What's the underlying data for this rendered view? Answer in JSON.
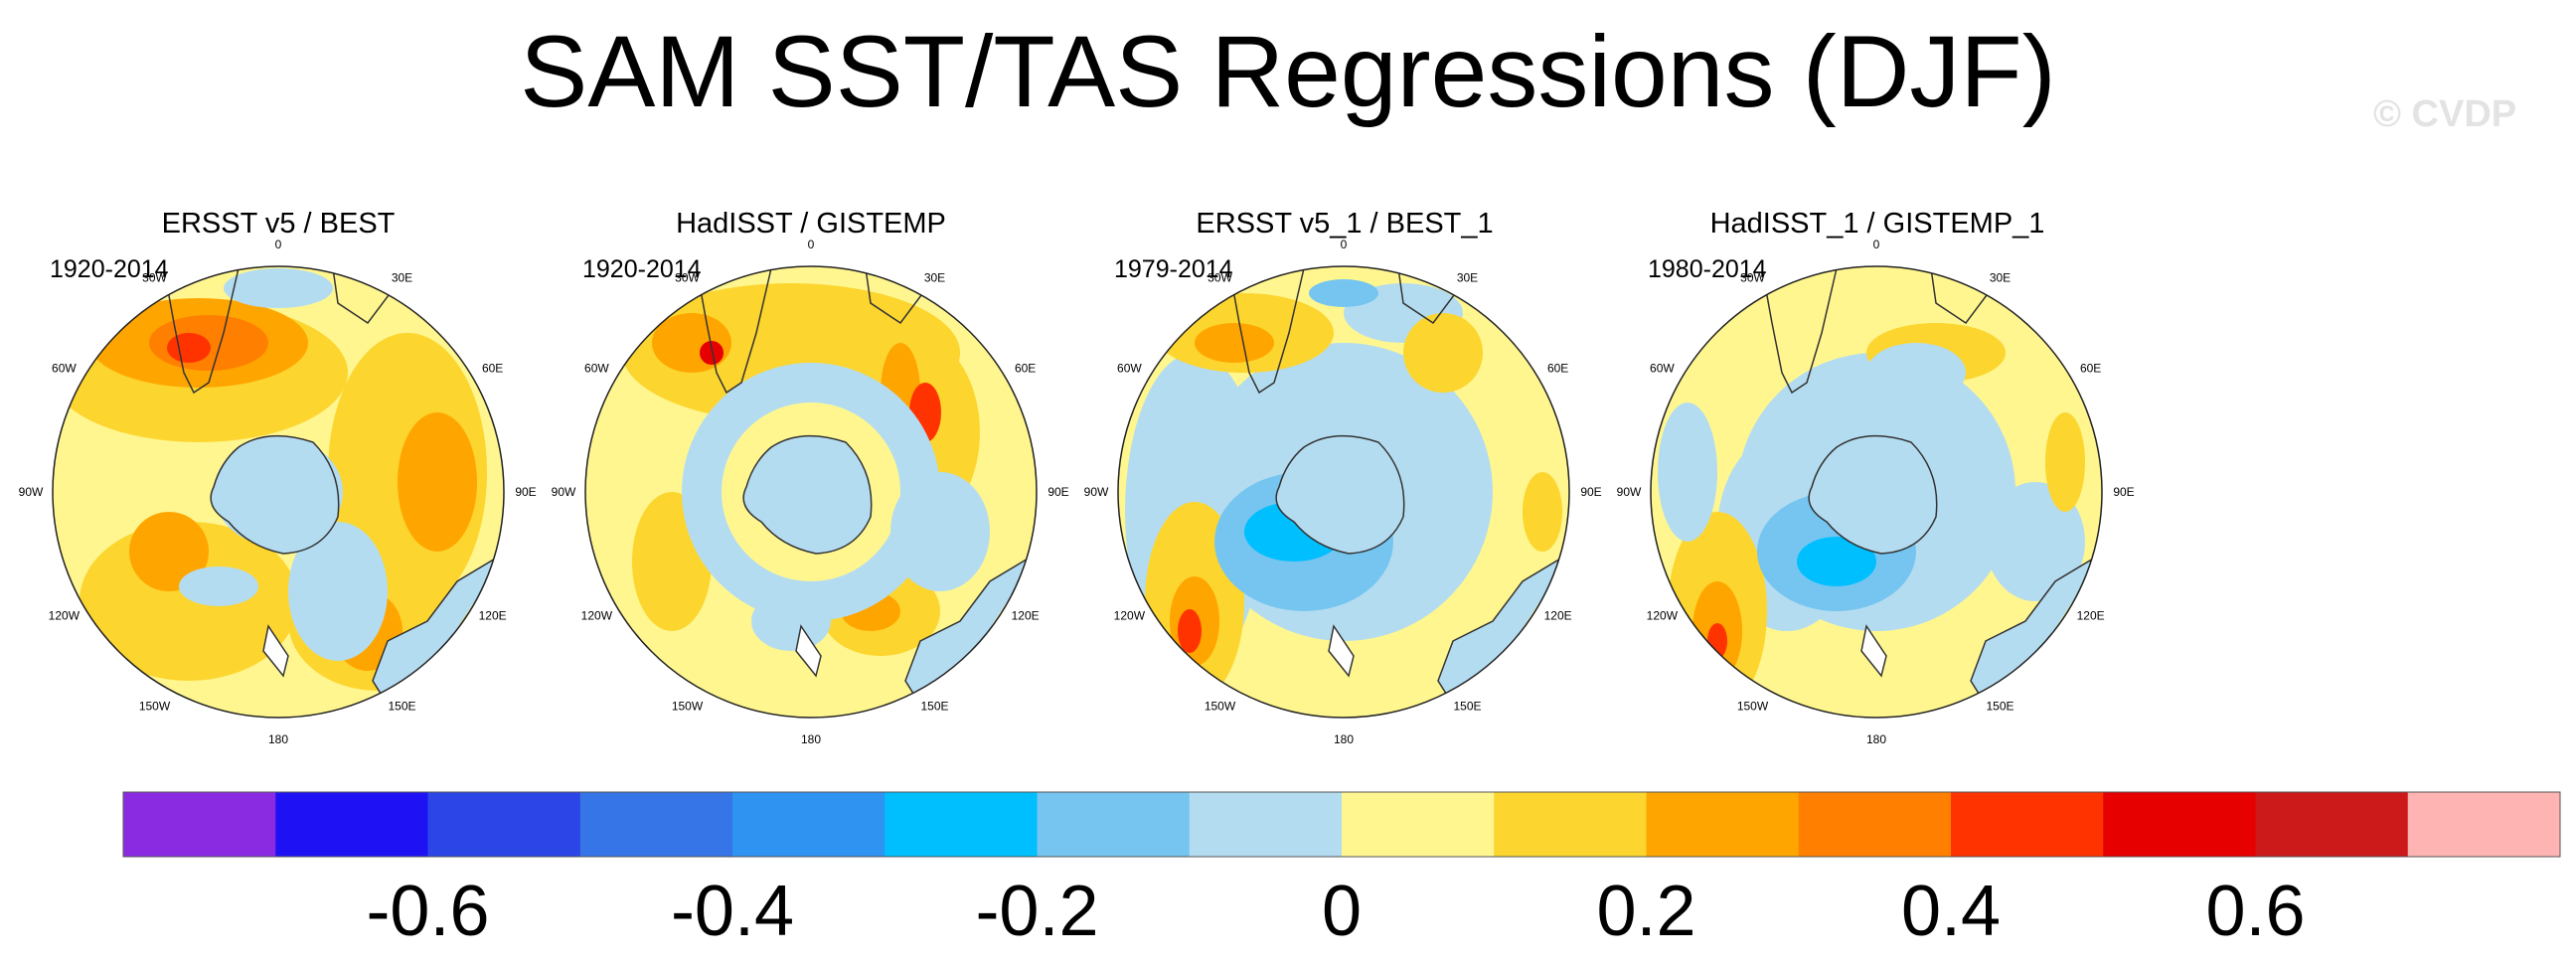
{
  "title": "SAM SST/TAS Regressions (DJF)",
  "watermark": "© CVDP",
  "chart_data": {
    "type": "heatmap",
    "projection": "polar stereographic, South Pole",
    "panels": [
      {
        "title": "ERSST v5 / BEST",
        "period": "1920-2014"
      },
      {
        "title": "HadISST / GISTEMP",
        "period": "1920-2014"
      },
      {
        "title": "ERSST v5_1 / BEST_1",
        "period": "1979-2014"
      },
      {
        "title": "HadISST_1 / GISTEMP_1",
        "period": "1980-2014"
      }
    ],
    "longitude_labels": [
      "0",
      "30E",
      "60E",
      "90E",
      "120E",
      "150E",
      "180",
      "150W",
      "120W",
      "90W",
      "60W",
      "30W"
    ],
    "colorbar": {
      "levels": [
        -0.7,
        -0.6,
        -0.5,
        -0.4,
        -0.3,
        -0.2,
        -0.1,
        0,
        0.1,
        0.2,
        0.3,
        0.4,
        0.5,
        0.6,
        0.7
      ],
      "colors": [
        "#8a2be2",
        "#1e12f5",
        "#2b45e6",
        "#3575e8",
        "#2f93f2",
        "#00bfff",
        "#75c5f0",
        "#b4dcf0",
        "#fff68f",
        "#fcd52e",
        "#ffa500",
        "#ff7f00",
        "#ff3300",
        "#e60000",
        "#cc1a1a",
        "#ffb4b4"
      ],
      "tick_labels": [
        "-0.6",
        "-0.4",
        "-0.2",
        "0",
        "0.2",
        "0.4",
        "0.6"
      ],
      "tick_values": [
        -0.6,
        -0.4,
        -0.2,
        0,
        0.2,
        0.4,
        0.6
      ]
    }
  }
}
